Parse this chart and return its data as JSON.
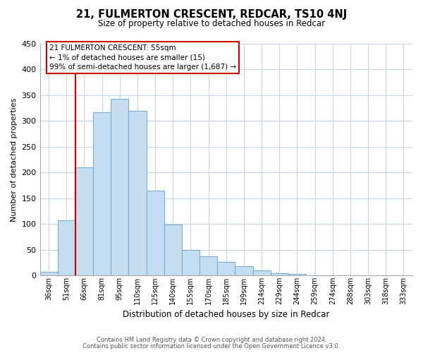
{
  "title": "21, FULMERTON CRESCENT, REDCAR, TS10 4NJ",
  "subtitle": "Size of property relative to detached houses in Redcar",
  "xlabel": "Distribution of detached houses by size in Redcar",
  "ylabel": "Number of detached properties",
  "categories": [
    "36sqm",
    "51sqm",
    "66sqm",
    "81sqm",
    "95sqm",
    "110sqm",
    "125sqm",
    "140sqm",
    "155sqm",
    "170sqm",
    "185sqm",
    "199sqm",
    "214sqm",
    "229sqm",
    "244sqm",
    "259sqm",
    "274sqm",
    "288sqm",
    "303sqm",
    "318sqm",
    "333sqm"
  ],
  "values": [
    8,
    107,
    210,
    317,
    343,
    320,
    165,
    99,
    50,
    37,
    27,
    18,
    10,
    5,
    3,
    0,
    0,
    0,
    0,
    0,
    0
  ],
  "bar_color": "#c5ddf0",
  "bar_edge_color": "#7aaed6",
  "ylim": [
    0,
    450
  ],
  "yticks": [
    0,
    50,
    100,
    150,
    200,
    250,
    300,
    350,
    400,
    450
  ],
  "property_line_x": 1.5,
  "property_line_color": "#cc0000",
  "annotation_line1": "21 FULMERTON CRESCENT: 55sqm",
  "annotation_line2": "← 1% of detached houses are smaller (15)",
  "annotation_line3": "99% of semi-detached houses are larger (1,687) →",
  "footer_line1": "Contains HM Land Registry data © Crown copyright and database right 2024.",
  "footer_line2": "Contains public sector information licensed under the Open Government Licence v3.0.",
  "bg_color": "#ffffff",
  "grid_color": "#c8d4e8",
  "annotation_edge_color": "#cc0000"
}
